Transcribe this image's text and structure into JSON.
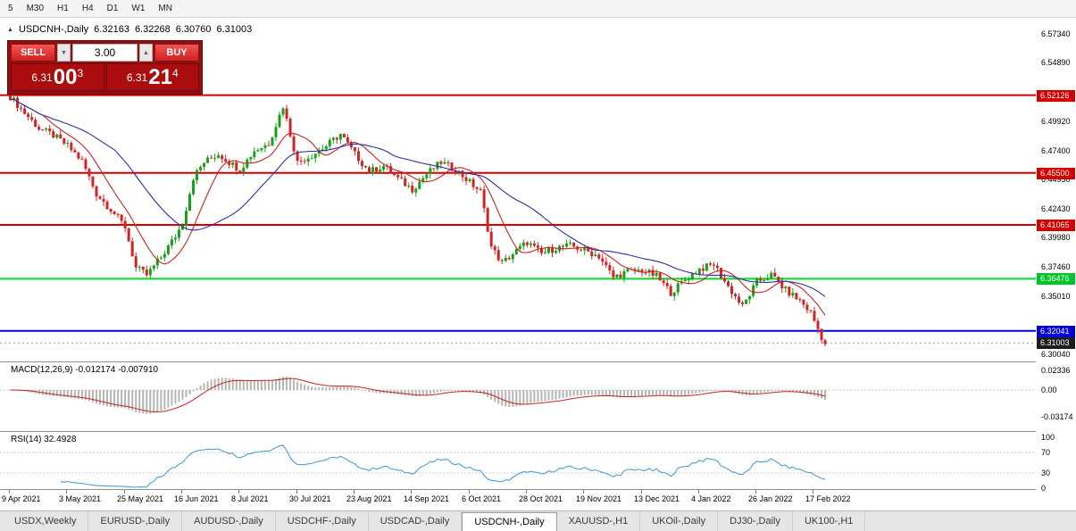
{
  "toolbar": {
    "timeframes": [
      "5",
      "M30",
      "H1",
      "H4",
      "D1",
      "W1",
      "MN"
    ]
  },
  "header": {
    "collapse_icon": "▲",
    "symbol": "USDCNH-,Daily",
    "open": "6.32163",
    "high": "6.32268",
    "low": "6.30760",
    "close": "6.31003"
  },
  "trade_panel": {
    "sell_label": "SELL",
    "buy_label": "BUY",
    "volume": "3.00",
    "volume_down_icon": "▼",
    "volume_up_icon": "▲",
    "sell_price_prefix": "6.31",
    "sell_price_big": "00",
    "sell_price_sup": "3",
    "buy_price_prefix": "6.31",
    "buy_price_big": "21",
    "buy_price_sup": "4"
  },
  "price_axis": {
    "labels": [
      {
        "text": "6.57340",
        "price": 6.5734
      },
      {
        "text": "6.54890",
        "price": 6.5489
      },
      {
        "text": "6.49920",
        "price": 6.4992
      },
      {
        "text": "6.47400",
        "price": 6.474
      },
      {
        "text": "6.44950",
        "price": 6.4495
      },
      {
        "text": "6.42430",
        "price": 6.4243
      },
      {
        "text": "6.39980",
        "price": 6.3998
      },
      {
        "text": "6.37460",
        "price": 6.3746
      },
      {
        "text": "6.35010",
        "price": 6.3501
      },
      {
        "text": "6.30040",
        "price": 6.3004
      }
    ],
    "badges": [
      {
        "text": "6.52126",
        "price": 6.52126,
        "bg": "#d40000",
        "fg": "#ffffff"
      },
      {
        "text": "6.45500",
        "price": 6.455,
        "bg": "#d40000",
        "fg": "#ffffff"
      },
      {
        "text": "6.41065",
        "price": 6.41065,
        "bg": "#d40000",
        "fg": "#ffffff"
      },
      {
        "text": "6.36476",
        "price": 6.36476,
        "bg": "#00c428",
        "fg": "#ffffff"
      },
      {
        "text": "6.32041",
        "price": 6.32041,
        "bg": "#0000d6",
        "fg": "#ffffff"
      },
      {
        "text": "6.31003",
        "price": 6.31003,
        "bg": "#1c1c1c",
        "fg": "#ffffff"
      }
    ]
  },
  "levels": [
    {
      "price": 6.52126,
      "color": "#d40000",
      "width": 2,
      "dash": ""
    },
    {
      "price": 6.455,
      "color": "#d40000",
      "width": 2,
      "dash": ""
    },
    {
      "price": 6.41065,
      "color": "#d40000",
      "width": 2,
      "dash": ""
    },
    {
      "price": 6.36476,
      "color": "#00d926",
      "width": 2,
      "dash": ""
    },
    {
      "price": 6.32041,
      "color": "#0000e0",
      "width": 2,
      "dash": ""
    },
    {
      "price": 6.31003,
      "color": "#999999",
      "width": 1,
      "dash": "2,3"
    }
  ],
  "chart_data": {
    "type": "candlestick",
    "symbol": "USDCNH-",
    "timeframe": "Daily",
    "num_candles": 228,
    "price_range": [
      6.297,
      6.5734
    ],
    "up_color": "#18a018",
    "down_color": "#d22424",
    "close_anchors": [
      [
        0,
        6.52
      ],
      [
        4,
        6.506
      ],
      [
        8,
        6.493
      ],
      [
        12,
        6.487
      ],
      [
        16,
        6.478
      ],
      [
        20,
        6.465
      ],
      [
        24,
        6.437
      ],
      [
        28,
        6.424
      ],
      [
        32,
        6.409
      ],
      [
        35,
        6.374
      ],
      [
        38,
        6.368
      ],
      [
        42,
        6.383
      ],
      [
        46,
        6.401
      ],
      [
        48,
        6.412
      ],
      [
        51,
        6.451
      ],
      [
        54,
        6.464
      ],
      [
        58,
        6.471
      ],
      [
        62,
        6.462
      ],
      [
        64,
        6.458
      ],
      [
        68,
        6.474
      ],
      [
        72,
        6.48
      ],
      [
        76,
        6.512
      ],
      [
        78,
        6.488
      ],
      [
        80,
        6.464
      ],
      [
        84,
        6.47
      ],
      [
        88,
        6.478
      ],
      [
        92,
        6.488
      ],
      [
        96,
        6.471
      ],
      [
        100,
        6.456
      ],
      [
        104,
        6.461
      ],
      [
        108,
        6.45
      ],
      [
        112,
        6.441
      ],
      [
        116,
        6.454
      ],
      [
        120,
        6.464
      ],
      [
        124,
        6.458
      ],
      [
        128,
        6.447
      ],
      [
        131,
        6.439
      ],
      [
        134,
        6.392
      ],
      [
        137,
        6.378
      ],
      [
        140,
        6.386
      ],
      [
        144,
        6.396
      ],
      [
        148,
        6.386
      ],
      [
        152,
        6.391
      ],
      [
        156,
        6.393
      ],
      [
        160,
        6.389
      ],
      [
        164,
        6.384
      ],
      [
        168,
        6.366
      ],
      [
        172,
        6.371
      ],
      [
        176,
        6.372
      ],
      [
        180,
        6.367
      ],
      [
        184,
        6.353
      ],
      [
        188,
        6.364
      ],
      [
        192,
        6.373
      ],
      [
        196,
        6.377
      ],
      [
        200,
        6.358
      ],
      [
        204,
        6.341
      ],
      [
        208,
        6.362
      ],
      [
        212,
        6.368
      ],
      [
        216,
        6.355
      ],
      [
        220,
        6.346
      ],
      [
        223,
        6.336
      ],
      [
        225,
        6.322
      ],
      [
        226,
        6.315
      ],
      [
        227,
        6.309
      ]
    ],
    "moving_averages": [
      {
        "name": "fast-ma",
        "period": 10,
        "color": "#cc2222"
      },
      {
        "name": "slow-ma",
        "period": 30,
        "color": "#2f2f9e"
      }
    ]
  },
  "macd_panel": {
    "label_name": "MACD(12,26,9)",
    "label_values": "-0.012174 -0.007910",
    "axis_labels": [
      {
        "text": "0.02336",
        "value": 0.02336
      },
      {
        "text": "0.00",
        "value": 0
      },
      {
        "text": "-0.03174",
        "value": -0.03174
      }
    ],
    "histogram_color": "#b5b5b5",
    "signal_color": "#cc2222"
  },
  "rsi_panel": {
    "label_name": "RSI(14)",
    "label_value": "32.4928",
    "axis_labels": [
      {
        "text": "100",
        "value": 100
      },
      {
        "text": "70",
        "value": 70
      },
      {
        "text": "30",
        "value": 30
      },
      {
        "text": "0",
        "value": 0
      }
    ],
    "line_color": "#4e9fd4",
    "level_lines": [
      70,
      30
    ]
  },
  "date_axis": {
    "candles_per_label": 16,
    "labels": [
      "9 Apr 2021",
      "3 May 2021",
      "25 May 2021",
      "16 Jun 2021",
      "8 Jul 2021",
      "30 Jul 2021",
      "23 Aug 2021",
      "14 Sep 2021",
      "6 Oct 2021",
      "28 Oct 2021",
      "19 Nov 2021",
      "13 Dec 2021",
      "4 Jan 2022",
      "26 Jan 2022",
      "17 Feb 2022"
    ]
  },
  "tabs": [
    {
      "label": "USDX,Weekly",
      "active": false
    },
    {
      "label": "EURUSD-,Daily",
      "active": false
    },
    {
      "label": "AUDUSD-,Daily",
      "active": false
    },
    {
      "label": "USDCHF-,Daily",
      "active": false
    },
    {
      "label": "USDCAD-,Daily",
      "active": false
    },
    {
      "label": "USDCNH-,Daily",
      "active": true
    },
    {
      "label": "XAUUSD-,H1",
      "active": false
    },
    {
      "label": "UKOil-,Daily",
      "active": false
    },
    {
      "label": "DJ30-,Daily",
      "active": false
    },
    {
      "label": "UK100-,H1",
      "active": false
    }
  ]
}
